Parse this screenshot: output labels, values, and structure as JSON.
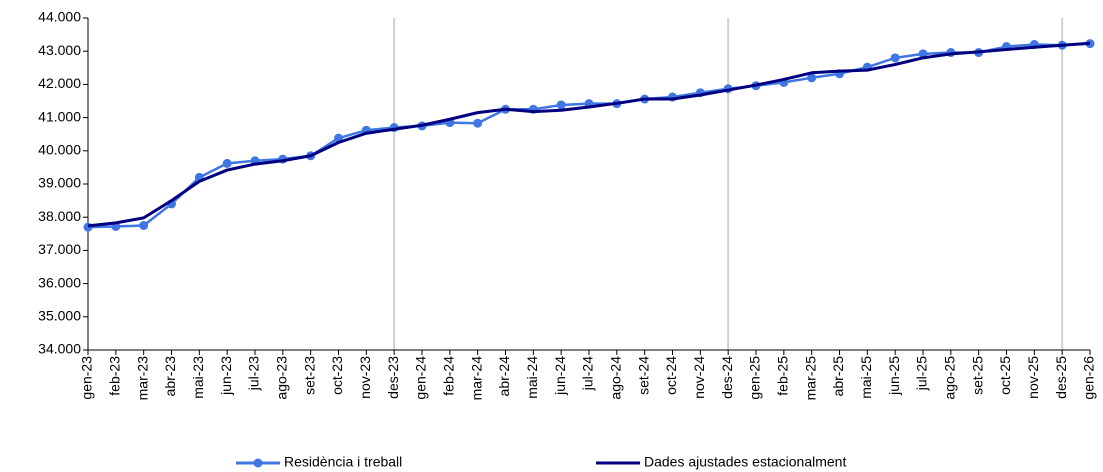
{
  "chart_data": {
    "type": "line",
    "categories": [
      "gen-23",
      "feb-23",
      "mar-23",
      "abr-23",
      "mai-23",
      "jun-23",
      "jul-23",
      "ago-23",
      "set-23",
      "oct-23",
      "nov-23",
      "des-23",
      "gen-24",
      "feb-24",
      "mar-24",
      "abr-24",
      "mai-24",
      "jun-24",
      "jul-24",
      "ago-24",
      "set-24",
      "oct-24",
      "nov-24",
      "des-24",
      "gen-25",
      "feb-25",
      "mar-25",
      "abr-25",
      "mai-25",
      "jun-25",
      "jul-25",
      "ago-25",
      "set-25",
      "oct-25",
      "nov-25",
      "des-25",
      "gen-26"
    ],
    "series": [
      {
        "name": "Residència i treball",
        "color": "#3f76e4",
        "values": [
          37700,
          37720,
          37750,
          38400,
          39200,
          39620,
          39700,
          39750,
          39850,
          40380,
          40620,
          40700,
          40750,
          40850,
          40830,
          41250,
          41250,
          41380,
          41420,
          41420,
          41560,
          41620,
          41750,
          41870,
          41960,
          42060,
          42200,
          42320,
          42520,
          42800,
          42920,
          42960,
          42960,
          43140,
          43200,
          43180,
          43230
        ]
      },
      {
        "name": "Dades ajustades estacionalment",
        "color": "#000080",
        "values": [
          37740,
          37830,
          37980,
          38500,
          39080,
          39420,
          39600,
          39700,
          39850,
          40250,
          40530,
          40650,
          40770,
          40950,
          41150,
          41250,
          41180,
          41220,
          41320,
          41430,
          41560,
          41560,
          41680,
          41830,
          41980,
          42150,
          42350,
          42400,
          42430,
          42600,
          42800,
          42920,
          42980,
          43050,
          43120,
          43180,
          43240
        ]
      }
    ],
    "ylim": [
      34000,
      44000
    ],
    "yticks": [
      {
        "value": 34000,
        "label": "34.000"
      },
      {
        "value": 35000,
        "label": "35.000"
      },
      {
        "value": 36000,
        "label": "36.000"
      },
      {
        "value": 37000,
        "label": "37.000"
      },
      {
        "value": 38000,
        "label": "38.000"
      },
      {
        "value": 39000,
        "label": "39.000"
      },
      {
        "value": 40000,
        "label": "40.000"
      },
      {
        "value": 41000,
        "label": "41.000"
      },
      {
        "value": 42000,
        "label": "42.000"
      },
      {
        "value": 43000,
        "label": "43.000"
      },
      {
        "value": 44000,
        "label": "44.000"
      }
    ],
    "legend": "bottom"
  }
}
